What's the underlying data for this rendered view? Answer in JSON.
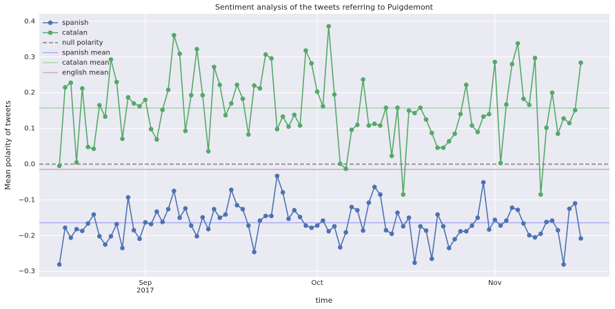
{
  "chart_data": {
    "type": "line",
    "title": "Sentiment analysis of the tweets referring to Puigdemont",
    "xlabel": "time",
    "ylabel": "Mean polarity of tweets",
    "xlim": [
      -3.5,
      96
    ],
    "xticks": [
      {
        "value": 15,
        "label": "Sep\n2017"
      },
      {
        "value": 45,
        "label": "Oct"
      },
      {
        "value": 76,
        "label": "Nov"
      }
    ],
    "ylim": [
      -0.315,
      0.421
    ],
    "yticks": [
      {
        "value": -0.3,
        "label": "−0.3"
      },
      {
        "value": -0.2,
        "label": "−0.2"
      },
      {
        "value": -0.1,
        "label": "−0.1"
      },
      {
        "value": 0,
        "label": "0.0"
      },
      0.1,
      0.2,
      0.3,
      0.4
    ],
    "grid": true,
    "legend": "upper left",
    "series": [
      {
        "name": "spanish",
        "color": "#4c72b0",
        "values": [
          -0.281,
          -0.178,
          -0.206,
          -0.182,
          -0.187,
          -0.166,
          -0.141,
          -0.202,
          -0.225,
          -0.202,
          -0.168,
          -0.235,
          -0.093,
          -0.185,
          -0.209,
          -0.163,
          -0.168,
          -0.133,
          -0.162,
          -0.126,
          -0.075,
          -0.15,
          -0.124,
          -0.172,
          -0.202,
          -0.149,
          -0.182,
          -0.126,
          -0.15,
          -0.141,
          -0.072,
          -0.115,
          -0.126,
          -0.172,
          -0.246,
          -0.158,
          -0.145,
          -0.145,
          -0.033,
          -0.079,
          -0.153,
          -0.129,
          -0.148,
          -0.172,
          -0.178,
          -0.172,
          -0.158,
          -0.188,
          -0.174,
          -0.233,
          -0.191,
          -0.12,
          -0.129,
          -0.186,
          -0.108,
          -0.064,
          -0.085,
          -0.185,
          -0.195,
          -0.136,
          -0.174,
          -0.15,
          -0.276,
          -0.174,
          -0.186,
          -0.265,
          -0.141,
          -0.174,
          -0.235,
          -0.21,
          -0.188,
          -0.188,
          -0.172,
          -0.15,
          -0.051,
          -0.183,
          -0.156,
          -0.172,
          -0.158,
          -0.122,
          -0.128,
          -0.166,
          -0.199,
          -0.205,
          -0.195,
          -0.162,
          -0.158,
          -0.185,
          -0.281,
          -0.125,
          -0.11,
          -0.208
        ]
      },
      {
        "name": "catalan",
        "color": "#55a868",
        "values": [
          -0.005,
          0.215,
          0.228,
          0.005,
          0.212,
          0.048,
          0.043,
          0.165,
          0.133,
          0.293,
          0.23,
          0.071,
          0.187,
          0.17,
          0.162,
          0.18,
          0.098,
          0.069,
          0.152,
          0.208,
          0.361,
          0.309,
          0.093,
          0.193,
          0.322,
          0.193,
          0.036,
          0.272,
          0.222,
          0.137,
          0.17,
          0.222,
          0.183,
          0.083,
          0.22,
          0.212,
          0.307,
          0.296,
          0.098,
          0.133,
          0.105,
          0.138,
          0.108,
          0.318,
          0.282,
          0.203,
          0.162,
          0.386,
          0.195,
          0.001,
          -0.013,
          0.096,
          0.11,
          0.237,
          0.108,
          0.113,
          0.108,
          0.158,
          0.023,
          0.158,
          -0.085,
          0.15,
          0.143,
          0.158,
          0.125,
          0.087,
          0.046,
          0.046,
          0.064,
          0.085,
          0.14,
          0.222,
          0.108,
          0.09,
          0.133,
          0.14,
          0.286,
          0.003,
          0.167,
          0.28,
          0.338,
          0.183,
          0.166,
          0.297,
          -0.085,
          0.102,
          0.2,
          0.085,
          0.128,
          0.115,
          0.151,
          0.284
        ]
      }
    ],
    "hlines": [
      {
        "name": "null polarity",
        "color": "#7f7f7f",
        "value": 0,
        "dashed": true
      },
      {
        "name": "spanish mean",
        "color": "#a9acf2",
        "value": -0.164,
        "dashed": false
      },
      {
        "name": "catalan mean",
        "color": "#a6d5a9",
        "value": 0.157,
        "dashed": false
      },
      {
        "name": "english mean",
        "color": "#d3a5c9",
        "value": -0.015,
        "dashed": false
      }
    ]
  }
}
